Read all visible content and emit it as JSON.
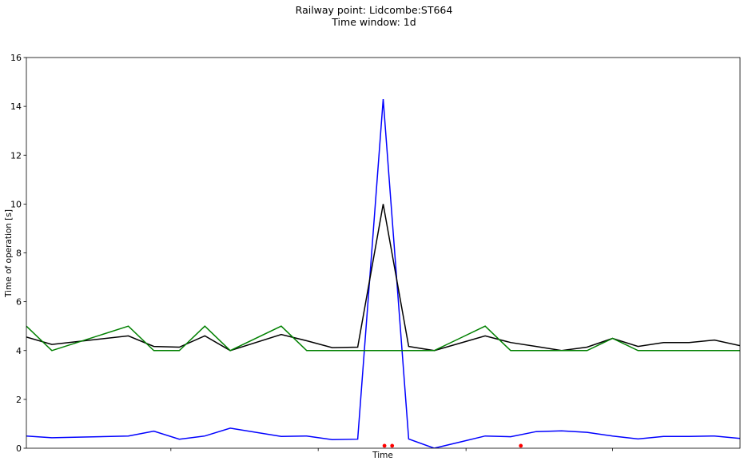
{
  "chart_data": {
    "type": "line",
    "title": "Railway point: Lidcombe:ST664",
    "subtitle": "Time window: 1d",
    "xlabel": "Time",
    "ylabel": "Time of operation [s]",
    "ylim": [
      0,
      16
    ],
    "yticks": [
      0,
      2,
      4,
      6,
      8,
      10,
      12,
      14,
      16
    ],
    "xlim": [
      0,
      28
    ],
    "grid": false,
    "series": [
      {
        "color": "#0000ff",
        "x": [
          0,
          1,
          4,
          5,
          6,
          7,
          8,
          10,
          11,
          12,
          13,
          14,
          15,
          16,
          17,
          18,
          19,
          20,
          21,
          22,
          23,
          24,
          25,
          26,
          27,
          28
        ],
        "values": [
          0.5,
          0.43,
          0.5,
          0.7,
          0.37,
          0.5,
          0.82,
          0.48,
          0.5,
          0.35,
          0.37,
          14.3,
          0.38,
          0.0,
          0.25,
          0.5,
          0.47,
          0.68,
          0.71,
          0.65,
          0.5,
          0.38,
          0.48,
          0.48,
          0.5,
          0.4
        ]
      },
      {
        "color": "#000000",
        "x": [
          0,
          1,
          4,
          5,
          6,
          7,
          8,
          10,
          11,
          12,
          13,
          14,
          15,
          16,
          17,
          18,
          19,
          20,
          21,
          22,
          23,
          24,
          25,
          26,
          27,
          28
        ],
        "values": [
          4.55,
          4.25,
          4.6,
          4.17,
          4.14,
          4.6,
          4.0,
          4.66,
          4.4,
          4.12,
          4.14,
          10.0,
          4.17,
          4.0,
          4.3,
          4.6,
          4.33,
          4.17,
          4.0,
          4.14,
          4.5,
          4.17,
          4.33,
          4.33,
          4.43,
          4.2
        ]
      },
      {
        "color": "#008000",
        "x": [
          0,
          1,
          4,
          5,
          6,
          7,
          8,
          10,
          11,
          12,
          13,
          14,
          15,
          16,
          17,
          18,
          19,
          20,
          21,
          22,
          23,
          24,
          25,
          26,
          27,
          28
        ],
        "values": [
          5.0,
          4.0,
          5.0,
          4.0,
          4.0,
          5.0,
          4.0,
          5.0,
          4.0,
          4.0,
          4.0,
          4.0,
          4.0,
          4.0,
          4.5,
          5.0,
          4.0,
          4.0,
          4.0,
          4.0,
          4.5,
          4.0,
          4.0,
          4.0,
          4.0,
          4.0
        ]
      },
      {
        "color": "#ff0000",
        "marker": "dot",
        "x": [
          14.05,
          14.35,
          19.4
        ],
        "values": [
          0.1,
          0.1,
          0.1
        ]
      }
    ],
    "xticks": [
      5.67,
      11.45,
      17.25,
      23.0
    ]
  }
}
